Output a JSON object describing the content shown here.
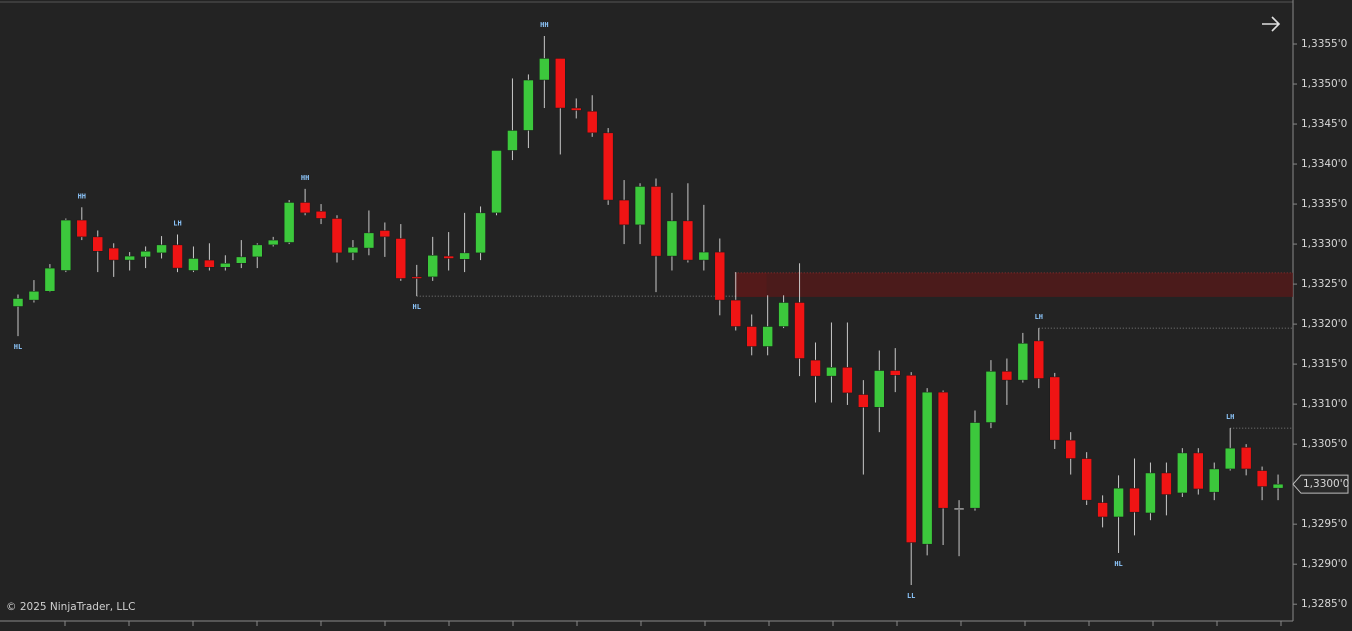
{
  "chart_data": {
    "type": "candlestick",
    "open": [
      1.33222,
      1.3323,
      1.33241,
      1.33267,
      1.3333,
      1.33309,
      1.33295,
      1.3328,
      1.33284,
      1.33289,
      1.33299,
      1.33267,
      1.3328,
      1.33271,
      1.33276,
      1.33284,
      1.33299,
      1.33302,
      1.33352,
      1.33341,
      1.33332,
      1.33289,
      1.33295,
      1.33317,
      1.33307,
      1.33259,
      1.33259,
      1.33285,
      1.33281,
      1.33289,
      1.33339,
      1.33417,
      1.33442,
      1.33505,
      1.33532,
      1.3347,
      1.33466,
      1.33439,
      1.33355,
      1.33324,
      1.33372,
      1.33285,
      1.33329,
      1.3328,
      1.3329,
      1.3323,
      1.33197,
      1.33172,
      1.33197,
      1.33227,
      1.33155,
      1.33135,
      1.33146,
      1.33112,
      1.33096,
      1.33142,
      1.33136,
      1.32925,
      1.33115,
      1.3297,
      1.3297,
      1.33077,
      1.33141,
      1.3313,
      1.33179,
      1.33134,
      1.33055,
      1.33032,
      1.32977,
      1.32959,
      1.32995,
      1.32964,
      1.33014,
      1.32989,
      1.33039,
      1.3299,
      1.33019,
      1.33046,
      1.33017,
      1.32995
    ],
    "high": [
      1.33237,
      1.33255,
      1.33275,
      1.33332,
      1.33346,
      1.33317,
      1.33301,
      1.3329,
      1.33297,
      1.3331,
      1.33312,
      1.33297,
      1.33301,
      1.33286,
      1.33305,
      1.33301,
      1.33309,
      1.33355,
      1.33369,
      1.3335,
      1.33336,
      1.33305,
      1.33342,
      1.33327,
      1.33325,
      1.33274,
      1.33309,
      1.33315,
      1.33339,
      1.33347,
      1.33417,
      1.33507,
      1.33512,
      1.3356,
      1.33532,
      1.33482,
      1.33486,
      1.33445,
      1.3338,
      1.33376,
      1.33382,
      1.33364,
      1.33376,
      1.33349,
      1.33307,
      1.33265,
      1.33212,
      1.33236,
      1.33236,
      1.33276,
      1.33177,
      1.33202,
      1.33202,
      1.3313,
      1.33167,
      1.3317,
      1.3314,
      1.3312,
      1.33117,
      1.3298,
      1.33092,
      1.33155,
      1.33157,
      1.33189,
      1.33195,
      1.33139,
      1.33065,
      1.3304,
      1.32986,
      1.33011,
      1.33032,
      1.33027,
      1.33027,
      1.33045,
      1.33045,
      1.33027,
      1.3307,
      1.3305,
      1.33022,
      1.33012
    ],
    "low": [
      1.33185,
      1.33227,
      1.3324,
      1.33265,
      1.33305,
      1.33265,
      1.33259,
      1.33267,
      1.3327,
      1.33282,
      1.33265,
      1.33265,
      1.33267,
      1.33267,
      1.3327,
      1.3327,
      1.33297,
      1.333,
      1.33336,
      1.33325,
      1.33277,
      1.3328,
      1.33286,
      1.33284,
      1.33254,
      1.33235,
      1.33254,
      1.33267,
      1.33265,
      1.3328,
      1.33336,
      1.33405,
      1.3342,
      1.3347,
      1.33412,
      1.33457,
      1.33434,
      1.33349,
      1.333,
      1.333,
      1.3324,
      1.33267,
      1.33277,
      1.33267,
      1.33211,
      1.33192,
      1.33161,
      1.33161,
      1.33195,
      1.33135,
      1.33102,
      1.33102,
      1.33099,
      1.33012,
      1.33065,
      1.33115,
      1.32874,
      1.32911,
      1.32924,
      1.3291,
      1.32967,
      1.3307,
      1.33099,
      1.33127,
      1.3312,
      1.33044,
      1.33012,
      1.32974,
      1.32946,
      1.32914,
      1.32936,
      1.32955,
      1.32961,
      1.32984,
      1.32987,
      1.3298,
      1.33017,
      1.33011,
      1.3298,
      1.3298
    ],
    "close": [
      1.33232,
      1.33241,
      1.3327,
      1.3333,
      1.33309,
      1.33291,
      1.3328,
      1.33285,
      1.33291,
      1.33299,
      1.3327,
      1.33282,
      1.33271,
      1.33276,
      1.33284,
      1.33299,
      1.33305,
      1.33352,
      1.33339,
      1.33332,
      1.33289,
      1.33296,
      1.33314,
      1.33309,
      1.33257,
      1.33257,
      1.33286,
      1.33282,
      1.33289,
      1.33339,
      1.33417,
      1.33442,
      1.33505,
      1.33532,
      1.3347,
      1.33467,
      1.33439,
      1.33355,
      1.33324,
      1.33372,
      1.33285,
      1.33329,
      1.3328,
      1.3329,
      1.3323,
      1.33197,
      1.33172,
      1.33197,
      1.33227,
      1.33157,
      1.33135,
      1.33146,
      1.33114,
      1.33096,
      1.33142,
      1.33136,
      1.32927,
      1.33115,
      1.3297,
      1.3297,
      1.33077,
      1.33141,
      1.3313,
      1.33176,
      1.33132,
      1.33055,
      1.33032,
      1.3298,
      1.32959,
      1.32995,
      1.32965,
      1.33014,
      1.32987,
      1.33039,
      1.32994,
      1.33019,
      1.33045,
      1.33019,
      1.32997,
      1.33
    ],
    "up_color": "#3cc83c",
    "down_color": "#f01414",
    "wick_color": "#c8c8c8",
    "doji_color": "#e6e6e6",
    "ylim": [
      1.32829,
      1.33605
    ],
    "yticks": [
      {
        "value": 1.3355,
        "label": "1,3355'0"
      },
      {
        "value": 1.335,
        "label": "1,3350'0"
      },
      {
        "value": 1.3345,
        "label": "1,3345'0"
      },
      {
        "value": 1.334,
        "label": "1,3340'0"
      },
      {
        "value": 1.3335,
        "label": "1,3335'0"
      },
      {
        "value": 1.333,
        "label": "1,3330'0"
      },
      {
        "value": 1.3325,
        "label": "1,3325'0"
      },
      {
        "value": 1.332,
        "label": "1,3320'0"
      },
      {
        "value": 1.3315,
        "label": "1,3315'0"
      },
      {
        "value": 1.331,
        "label": "1,3310'0"
      },
      {
        "value": 1.3305,
        "label": "1,3305'0"
      },
      {
        "value": 1.3295,
        "label": "1,3295'0"
      },
      {
        "value": 1.329,
        "label": "1,3290'0"
      },
      {
        "value": 1.3285,
        "label": "1,3285'0"
      }
    ],
    "last_price": {
      "value": 1.33,
      "label": "1,3300'0"
    },
    "annotations": [
      {
        "text": "HL",
        "index": 0,
        "side": "below"
      },
      {
        "text": "HH",
        "index": 4,
        "side": "above"
      },
      {
        "text": "LH",
        "index": 10,
        "side": "above"
      },
      {
        "text": "HH",
        "index": 18,
        "side": "above"
      },
      {
        "text": "HL",
        "index": 25,
        "side": "below"
      },
      {
        "text": "HH",
        "index": 33,
        "side": "above"
      },
      {
        "text": "LL",
        "index": 56,
        "side": "below"
      },
      {
        "text": "LH",
        "index": 64,
        "side": "above"
      },
      {
        "text": "HL",
        "index": 69,
        "side": "below"
      },
      {
        "text": "LH",
        "index": 76,
        "side": "above"
      }
    ],
    "levels": [
      {
        "price": 1.33235,
        "from_index": 25,
        "to_index": 45
      },
      {
        "price": 1.33195,
        "from_index": 64
      },
      {
        "price": 1.3307,
        "from_index": 76
      }
    ],
    "zones": [
      {
        "top": 1.33264,
        "bottom": 1.33234,
        "from_index": 45,
        "color": "#5a1a1a"
      }
    ]
  },
  "footer": {
    "copyright": "© 2025 NinjaTrader, LLC"
  }
}
